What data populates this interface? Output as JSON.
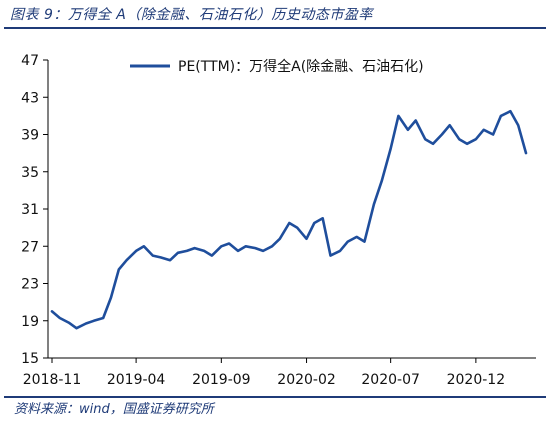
{
  "figure": {
    "title": "图表 9：万得全 A（除金融、石油石化）历史动态市盈率",
    "source": "资料来源：wind，国盛证券研究所"
  },
  "colors": {
    "series": "#1f4e9c",
    "axis": "#000000",
    "rule": "#1f3b78"
  },
  "chart_data": {
    "type": "line",
    "title": "",
    "xlabel": "",
    "ylabel": "",
    "ylim": [
      15,
      47
    ],
    "yticks": [
      15,
      19,
      23,
      27,
      31,
      35,
      39,
      43,
      47
    ],
    "xticks": [
      "2018-11",
      "2019-04",
      "2019-09",
      "2020-02",
      "2020-07",
      "2020-12"
    ],
    "grid": false,
    "legend_position": "top-right",
    "series": [
      {
        "name": "PE(TTM)：万得全A(除金融、石油石化)",
        "x": [
          "2018-11-01",
          "2018-11-15",
          "2018-12-01",
          "2018-12-15",
          "2019-01-01",
          "2019-01-15",
          "2019-02-01",
          "2019-02-15",
          "2019-03-01",
          "2019-03-15",
          "2019-04-01",
          "2019-04-15",
          "2019-05-01",
          "2019-05-15",
          "2019-06-01",
          "2019-06-15",
          "2019-07-01",
          "2019-07-15",
          "2019-08-01",
          "2019-08-15",
          "2019-09-01",
          "2019-09-15",
          "2019-10-01",
          "2019-10-15",
          "2019-11-01",
          "2019-11-15",
          "2019-12-01",
          "2019-12-15",
          "2020-01-01",
          "2020-01-15",
          "2020-02-01",
          "2020-02-15",
          "2020-03-01",
          "2020-03-15",
          "2020-04-01",
          "2020-04-15",
          "2020-05-01",
          "2020-05-15",
          "2020-06-01",
          "2020-06-15",
          "2020-07-01",
          "2020-07-15",
          "2020-08-01",
          "2020-08-15",
          "2020-09-01",
          "2020-09-15",
          "2020-10-01",
          "2020-10-15",
          "2020-11-01",
          "2020-11-15",
          "2020-12-01",
          "2020-12-15",
          "2021-01-01",
          "2021-01-15",
          "2021-02-01",
          "2021-02-15",
          "2021-03-01"
        ],
        "y": [
          20.0,
          19.3,
          18.8,
          18.2,
          18.7,
          19.0,
          19.3,
          21.5,
          24.5,
          25.5,
          26.5,
          27.0,
          26.0,
          25.8,
          25.5,
          26.3,
          26.5,
          26.8,
          26.5,
          26.0,
          27.0,
          27.3,
          26.5,
          27.0,
          26.8,
          26.5,
          27.0,
          27.8,
          29.5,
          29.0,
          27.8,
          29.5,
          30.0,
          26.0,
          26.5,
          27.5,
          28.0,
          27.5,
          31.5,
          34.0,
          37.5,
          41.0,
          39.5,
          40.5,
          38.5,
          38.0,
          39.0,
          40.0,
          38.5,
          38.0,
          38.5,
          39.5,
          39.0,
          41.0,
          41.5,
          40.0,
          37.0
        ]
      }
    ]
  }
}
